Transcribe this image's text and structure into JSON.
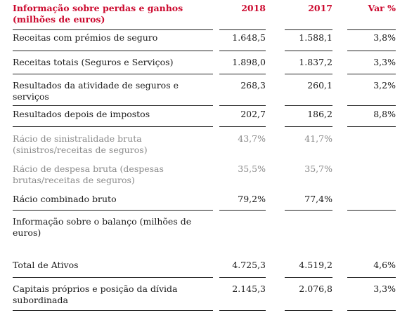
{
  "header": {
    "title": "Informação sobre perdas e ganhos (milhões de euros)",
    "col_2018": "2018",
    "col_2017": "2017",
    "col_var": "Var %"
  },
  "rows": [
    {
      "label": "Receitas com prémios de seguro",
      "v2018": "1.648,5",
      "v2017": "1.588,1",
      "var": "3,8%"
    },
    {
      "label": "Receitas totais (Seguros e Serviços)",
      "v2018": "1.898,0",
      "v2017": "1.837,2",
      "var": "3,3%"
    },
    {
      "label": "Resultados da atividade de seguros e serviços",
      "v2018": "268,3",
      "v2017": "260,1",
      "var": "3,2%"
    },
    {
      "label": "Resultados depois de impostos",
      "v2018": "202,7",
      "v2017": "186,2",
      "var": "8,8%"
    },
    {
      "label": "Rácio de sinistralidade bruta (sinistros/receitas de seguros)",
      "v2018": "43,7%",
      "v2017": "41,7%",
      "var": ""
    },
    {
      "label": "Rácio de despesa bruta (despesas brutas/receitas de seguros)",
      "v2018": "35,5%",
      "v2017": "35,7%",
      "var": ""
    },
    {
      "label": "Rácio combinado bruto",
      "v2018": "79,2%",
      "v2017": "77,4%",
      "var": ""
    },
    {
      "label": "Informação sobre o balanço (milhões de euros)",
      "v2018": "",
      "v2017": "",
      "var": ""
    },
    {
      "label": "Total de Ativos",
      "v2018": "4.725,3",
      "v2017": "4.519,2",
      "var": "4,6%"
    },
    {
      "label": "Capitais próprios e posição da dívida subordinada",
      "v2018": "2.145,3",
      "v2017": "2.076,8",
      "var": "3,3%"
    }
  ],
  "colors": {
    "accent": "#cc0a2f",
    "muted": "#8a8a8a",
    "text": "#1a1a1a"
  }
}
